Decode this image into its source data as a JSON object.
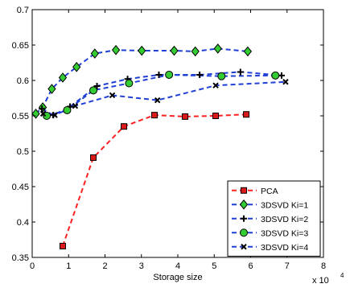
{
  "chart_data": {
    "type": "line",
    "xlabel": "Storage size",
    "x_multiplier_label": "x 10",
    "x_multiplier_exponent": "4",
    "ylabel": "",
    "title": "",
    "xlim": [
      0,
      80000
    ],
    "ylim": [
      0.35,
      0.7
    ],
    "x_ticks": [
      0,
      10000,
      20000,
      30000,
      40000,
      50000,
      60000,
      70000,
      80000
    ],
    "x_tick_labels": [
      "0",
      "1",
      "2",
      "3",
      "4",
      "5",
      "6",
      "7",
      "8"
    ],
    "y_ticks": [
      0.35,
      0.4,
      0.45,
      0.5,
      0.55,
      0.6,
      0.65,
      0.7
    ],
    "y_tick_labels": [
      "0.35",
      "0.4",
      "0.45",
      "0.5",
      "0.55",
      "0.6",
      "0.65",
      "0.7"
    ],
    "grid": false,
    "legend_position": "bottom-right",
    "series": [
      {
        "name": "PCA",
        "line_color": "#ff2020",
        "marker": "square",
        "marker_fill": "#dd1a1a",
        "points": [
          [
            8400,
            0.366
          ],
          [
            16800,
            0.491
          ],
          [
            25200,
            0.535
          ],
          [
            33600,
            0.551
          ],
          [
            42000,
            0.549
          ],
          [
            50400,
            0.55
          ],
          [
            58800,
            0.552
          ]
        ]
      },
      {
        "name": "3DSVD Ki=1",
        "line_color": "#1f3fd6",
        "marker": "diamond",
        "marker_fill": "#33cc33",
        "points": [
          [
            1000,
            0.553
          ],
          [
            2900,
            0.562
          ],
          [
            5400,
            0.588
          ],
          [
            8400,
            0.604
          ],
          [
            12200,
            0.619
          ],
          [
            17200,
            0.638
          ],
          [
            23000,
            0.643
          ],
          [
            30100,
            0.642
          ],
          [
            39000,
            0.642
          ],
          [
            44800,
            0.641
          ],
          [
            51000,
            0.645
          ],
          [
            59200,
            0.641
          ]
        ]
      },
      {
        "name": "3DSVD Ki=2",
        "line_color": "#1f3fd6",
        "marker": "plus",
        "marker_fill": "#000000",
        "points": [
          [
            2700,
            0.56
          ],
          [
            5800,
            0.551
          ],
          [
            10400,
            0.563
          ],
          [
            17800,
            0.592
          ],
          [
            26200,
            0.602
          ],
          [
            34800,
            0.608
          ],
          [
            46000,
            0.608
          ],
          [
            57200,
            0.612
          ],
          [
            68500,
            0.607
          ]
        ]
      },
      {
        "name": "3DSVD Ki=3",
        "line_color": "#1f3fd6",
        "marker": "circle",
        "marker_fill": "#33cc33",
        "points": [
          [
            4000,
            0.55
          ],
          [
            9600,
            0.558
          ],
          [
            16800,
            0.586
          ],
          [
            26600,
            0.596
          ],
          [
            37600,
            0.608
          ],
          [
            52000,
            0.606
          ],
          [
            66800,
            0.607
          ]
        ]
      },
      {
        "name": "3DSVD Ki=4",
        "line_color": "#1f3fd6",
        "marker": "x",
        "marker_fill": "#000000",
        "points": [
          [
            3000,
            0.553
          ],
          [
            6200,
            0.551
          ],
          [
            11800,
            0.564
          ],
          [
            22000,
            0.579
          ],
          [
            34400,
            0.572
          ],
          [
            50400,
            0.593
          ],
          [
            69600,
            0.598
          ]
        ]
      }
    ]
  }
}
